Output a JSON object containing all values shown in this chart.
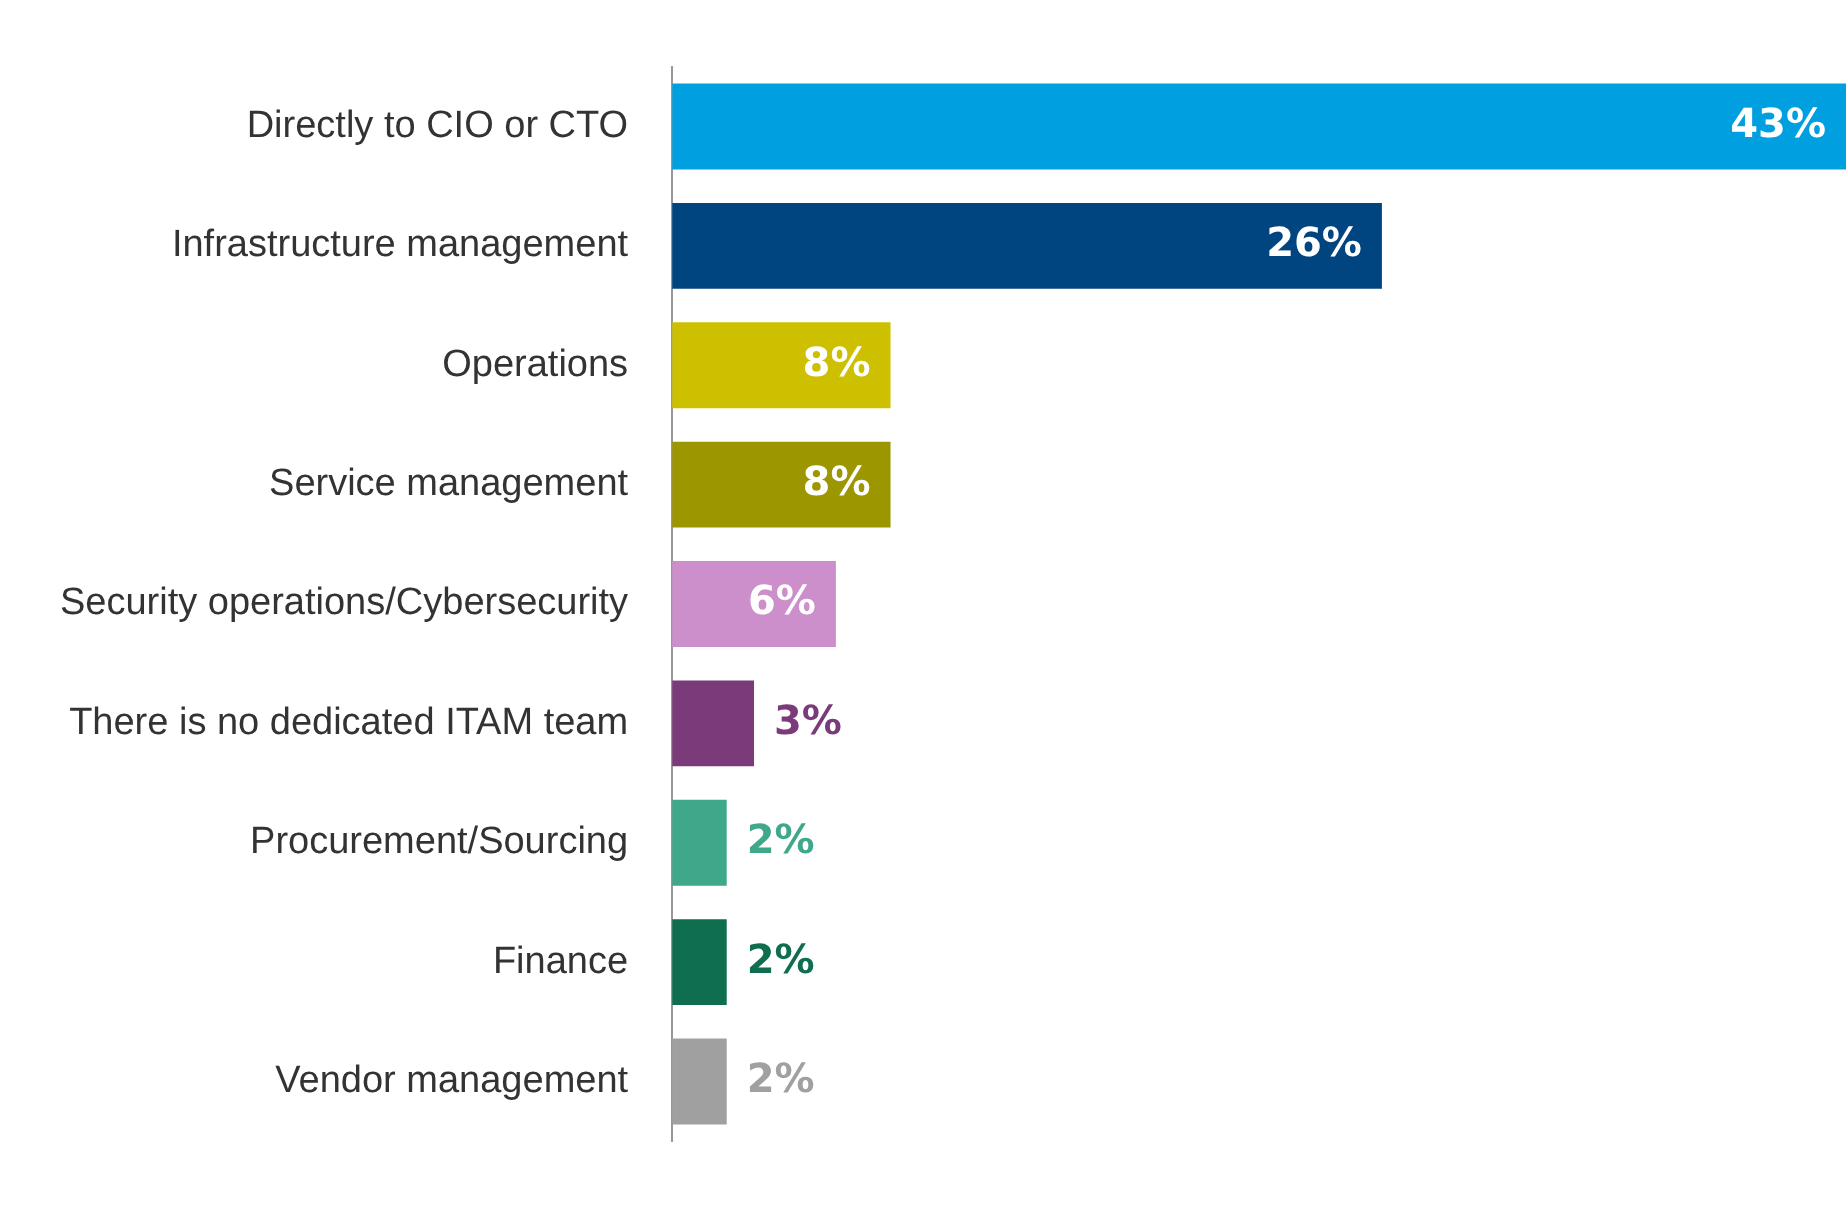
{
  "chart_data": {
    "type": "bar",
    "orientation": "horizontal",
    "data_labels": true,
    "legend": false,
    "tick_labels": "y",
    "categories": [
      "Directly to CIO or CTO",
      "Infrastructure management",
      "Operations",
      "Service management",
      "Security operations/Cybersecurity",
      "There is no dedicated ITAM team",
      "Procurement/Sourcing",
      "Finance",
      "Vendor management"
    ],
    "values": [
      43,
      26,
      8,
      8,
      6,
      3,
      2,
      2,
      2
    ],
    "value_labels": [
      "43%",
      "26%",
      "8%",
      "8%",
      "6%",
      "3%",
      "2%",
      "2%",
      "2%"
    ],
    "colors": [
      "#00a0e0",
      "#004480",
      "#cdc000",
      "#9c9600",
      "#cc8fcc",
      "#7b3b7b",
      "#3fa88a",
      "#0f6e50",
      "#a0a0a0"
    ]
  }
}
